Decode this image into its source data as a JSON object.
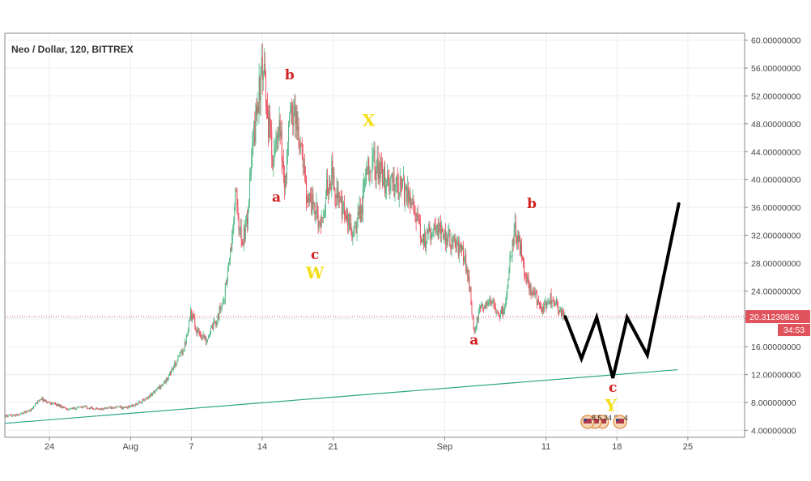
{
  "chart_data": {
    "type": "candlestick",
    "title": "Neo / Dollar, 120, BITTREX",
    "y_axis": {
      "ticks": [
        "60.00000000",
        "56.00000000",
        "52.00000000",
        "48.00000000",
        "44.00000000",
        "40.00000000",
        "36.00000000",
        "32.00000000",
        "28.00000000",
        "24.00000000",
        "20.00000000",
        "16.00000000",
        "12.00000000",
        "8.00000000",
        "4.00000000"
      ],
      "tick_values": [
        60,
        56,
        52,
        48,
        44,
        40,
        36,
        32,
        28,
        24,
        20,
        16,
        12,
        8,
        4
      ],
      "range": [
        3,
        61
      ]
    },
    "x_axis": {
      "ticks": [
        {
          "label": "24",
          "day": 24
        },
        {
          "label": "Aug",
          "day": 32
        },
        {
          "label": "7",
          "day": 38
        },
        {
          "label": "14",
          "day": 45
        },
        {
          "label": "21",
          "day": 52
        },
        {
          "label": "Sep",
          "day": 63
        },
        {
          "label": "11",
          "day": 73
        },
        {
          "label": "18",
          "day": 80
        },
        {
          "label": "25",
          "day": 87
        }
      ],
      "range_days": [
        19.6,
        92.6
      ],
      "unit": "days from July 1"
    },
    "current_price": {
      "value": 20.3123,
      "label": "20.31230826",
      "countdown": "34:53"
    },
    "price_anchors": [
      [
        19.6,
        6.0
      ],
      [
        21,
        6.2
      ],
      [
        22.3,
        7.0
      ],
      [
        23.2,
        8.6
      ],
      [
        24,
        8.0
      ],
      [
        25,
        7.6
      ],
      [
        26,
        7.0
      ],
      [
        27.5,
        7.4
      ],
      [
        29,
        7.0
      ],
      [
        30.5,
        7.4
      ],
      [
        31.5,
        7.2
      ],
      [
        32.5,
        7.6
      ],
      [
        33.5,
        8.4
      ],
      [
        34.5,
        9.6
      ],
      [
        35.5,
        11.0
      ],
      [
        36.5,
        13.5
      ],
      [
        37.4,
        16.0
      ],
      [
        38,
        21.0
      ],
      [
        38.6,
        18.5
      ],
      [
        39.5,
        17.0
      ],
      [
        40.5,
        19.5
      ],
      [
        41.3,
        23.0
      ],
      [
        42,
        30.0
      ],
      [
        42.5,
        38.0
      ],
      [
        43,
        31.0
      ],
      [
        43.5,
        33.0
      ],
      [
        44,
        42.0
      ],
      [
        44.5,
        50.0
      ],
      [
        45,
        55.0
      ],
      [
        45.3,
        54.0
      ],
      [
        45.7,
        48.0
      ],
      [
        46.2,
        43.0
      ],
      [
        46.8,
        47.0
      ],
      [
        47.3,
        39.0
      ],
      [
        47.8,
        49.0
      ],
      [
        48.3,
        50.0
      ],
      [
        48.8,
        45.0
      ],
      [
        49.5,
        38.0
      ],
      [
        50.2,
        36.0
      ],
      [
        51,
        33.0
      ],
      [
        51.5,
        39.0
      ],
      [
        52,
        41.0
      ],
      [
        52.8,
        36.0
      ],
      [
        53.5,
        34.0
      ],
      [
        54.2,
        32.0
      ],
      [
        55,
        37.0
      ],
      [
        55.5,
        43.0
      ],
      [
        56.2,
        42.0
      ],
      [
        57,
        40.0
      ],
      [
        58,
        39.0
      ],
      [
        59,
        38.5
      ],
      [
        60,
        37.0
      ],
      [
        60.5,
        33.0
      ],
      [
        61,
        31.0
      ],
      [
        62,
        33.5
      ],
      [
        63,
        32.0
      ],
      [
        64,
        31.0
      ],
      [
        65,
        29.0
      ],
      [
        65.5,
        25.0
      ],
      [
        66,
        18.0
      ],
      [
        66.5,
        21.0
      ],
      [
        67,
        22.0
      ],
      [
        67.5,
        23.0
      ],
      [
        68.3,
        20.5
      ],
      [
        69,
        21.5
      ],
      [
        69.5,
        28.0
      ],
      [
        70,
        33.0
      ],
      [
        70.5,
        30.5
      ],
      [
        71,
        27.0
      ],
      [
        71.5,
        24.0
      ],
      [
        72,
        23.5
      ],
      [
        72.5,
        21.0
      ],
      [
        73.5,
        23.0
      ],
      [
        74,
        22.5
      ],
      [
        74.5,
        21.0
      ],
      [
        74.9,
        20.3
      ]
    ],
    "projection": {
      "color": "#000000",
      "points": [
        [
          74.9,
          20.3
        ],
        [
          76.5,
          14.3
        ],
        [
          78,
          20.2
        ],
        [
          79.6,
          11.5
        ],
        [
          81,
          20.2
        ],
        [
          83,
          14.8
        ],
        [
          86.1,
          36.5
        ]
      ]
    },
    "trendline": {
      "color": "#2aa584",
      "points": [
        [
          19.6,
          5.0
        ],
        [
          86.0,
          12.7
        ]
      ]
    },
    "wave_labels": [
      {
        "text": "b",
        "day": 47.7,
        "price": 54.4,
        "color": "#d42020",
        "size": 17
      },
      {
        "text": "a",
        "day": 46.4,
        "price": 36.8,
        "color": "#d42020",
        "size": 17
      },
      {
        "text": "c",
        "day": 50.2,
        "price": 28.6,
        "color": "#d42020",
        "size": 17
      },
      {
        "text": "W",
        "day": 50.2,
        "price": 25.8,
        "color": "#f2de14",
        "size": 20
      },
      {
        "text": "X",
        "day": 55.5,
        "price": 47.7,
        "color": "#f2de14",
        "size": 20
      },
      {
        "text": "b",
        "day": 71.6,
        "price": 35.9,
        "color": "#d42020",
        "size": 17
      },
      {
        "text": "a",
        "day": 65.9,
        "price": 16.3,
        "color": "#d42020",
        "size": 17
      },
      {
        "text": "c",
        "day": 79.6,
        "price": 9.5,
        "color": "#d42020",
        "size": 17
      },
      {
        "text": "Y",
        "day": 79.4,
        "price": 6.8,
        "color": "#f2de14",
        "size": 20
      }
    ],
    "reference_line": {
      "value": 20.3123,
      "color": "#e0525c",
      "style": "dotted"
    },
    "grid": true,
    "candle_colors": {
      "up": "#53b987",
      "down": "#eb4d5c"
    },
    "events": [
      {
        "day": 77.1,
        "text": "8 5  34 8"
      },
      {
        "day": 80.3,
        "text": "4"
      }
    ]
  }
}
